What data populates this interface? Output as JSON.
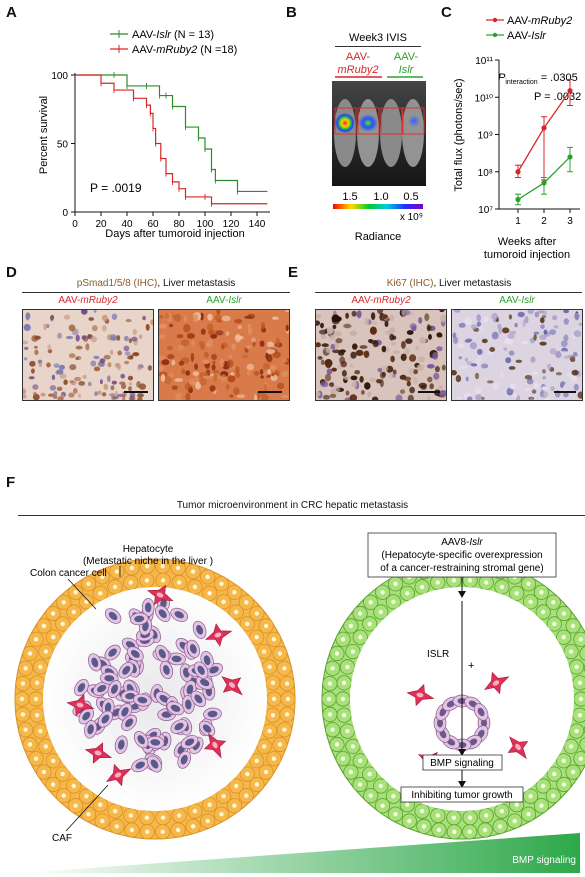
{
  "panels": {
    "A": "A",
    "B": "B",
    "C": "C",
    "D": "D",
    "E": "E",
    "F": "F"
  },
  "panelA": {
    "legend": [
      {
        "prefix": "AAV-",
        "gene": "Islr",
        "suffix": " (N = 13)",
        "color": "#2e8b2e"
      },
      {
        "prefix": "AAV-",
        "gene": "mRuby2",
        "suffix": " (N =18)",
        "color": "#d62728"
      }
    ],
    "p_text": "P = .0019",
    "ylabel": "Percent survival",
    "xlabel": "Days after tumoroid injection"
  },
  "panelB": {
    "title": "Week3 IVIS",
    "group1_line1": "AAV-",
    "group1_line2": "mRuby2",
    "group2_line1": "AAV-",
    "group2_line2": "Islr",
    "colorbar_ticks": [
      "1.5",
      "1.0",
      "0.5"
    ],
    "multiplier": "x 10⁹",
    "colorbar_label": "Radiance"
  },
  "panelC": {
    "legend": [
      {
        "prefix": "AAV-",
        "gene": "mRuby2",
        "color": "#d62728"
      },
      {
        "prefix": "AAV-",
        "gene": "Islr",
        "color": "#2ca02c"
      }
    ],
    "p_interaction_label": "P",
    "p_interaction_sub": "interaction",
    "p_interaction_value": " = .0305",
    "p2_text": "P = .0032",
    "ylabel": "Total flux (photons/sec)",
    "xlabel_line1": "Weeks after",
    "xlabel_line2": "tumoroid injection"
  },
  "panelD": {
    "title_marker": "pSmad1/5/8 (IHC)",
    "title_rest": ", Liver metastasis",
    "left_prefix": "AAV-",
    "left_gene": "mRuby2",
    "right_prefix": "AAV-",
    "right_gene": "Islr"
  },
  "panelE": {
    "title_marker": "Ki67 (IHC)",
    "title_rest": ", Liver metastasis",
    "left_prefix": "AAV-",
    "left_gene": "mRuby2",
    "right_prefix": "AAV-",
    "right_gene": "Islr"
  },
  "panelF": {
    "title": "Tumor microenvironment in CRC hepatic metastasis",
    "hepatocyte_line1": "Hepatocyte",
    "hepatocyte_line2": "(Metastatic niche in the liver )",
    "colon_cancer_cell": "Colon cancer cell",
    "caf": "CAF",
    "aav_line1_prefix": "AAV8-",
    "aav_line1_gene": "Islr",
    "aav_line2": "(Hepatocyte-specific overexpression",
    "aav_line3": "of a cancer-restraining stromal  gene)",
    "islr": "ISLR",
    "plus": "+",
    "bmp_box": "BMP signaling",
    "inhibit_box": "Inhibiting tumor growth",
    "gradient_label": "BMP signaling"
  },
  "chart_data": [
    {
      "type": "line",
      "panel": "A",
      "title": "",
      "xlabel": "Days after tumoroid injection",
      "ylabel": "Percent survival",
      "xlim": [
        0,
        150
      ],
      "ylim": [
        0,
        100
      ],
      "xticks": [
        0,
        20,
        40,
        60,
        80,
        100,
        120,
        140
      ],
      "yticks": [
        0,
        50,
        100
      ],
      "series": [
        {
          "name": "AAV-Islr (N = 13)",
          "color": "#2e8b2e",
          "x": [
            0,
            30,
            40,
            55,
            65,
            70,
            75,
            85,
            95,
            100,
            105,
            108,
            125,
            148
          ],
          "y": [
            100,
            100,
            92,
            92,
            85,
            85,
            77,
            62,
            54,
            46,
            31,
            23,
            15,
            15
          ]
        },
        {
          "name": "AAV-mRuby2 (N =18)",
          "color": "#d62728",
          "x": [
            0,
            20,
            30,
            45,
            55,
            58,
            60,
            62,
            66,
            70,
            75,
            80,
            85,
            100,
            105,
            148
          ],
          "y": [
            100,
            94,
            89,
            83,
            78,
            72,
            61,
            50,
            39,
            28,
            22,
            17,
            11,
            11,
            6,
            6
          ]
        }
      ]
    },
    {
      "type": "line",
      "panel": "C",
      "title": "",
      "xlabel": "Weeks after tumoroid injection",
      "ylabel": "Total flux (photons/sec)",
      "yscale": "log",
      "ylim": [
        10000000.0,
        100000000000.0
      ],
      "yticks": [
        "10⁷",
        "10⁸",
        "10⁹",
        "10¹⁰",
        "10¹¹"
      ],
      "xticks": [
        1,
        2,
        3
      ],
      "series": [
        {
          "name": "AAV-mRuby2",
          "color": "#d62728",
          "x": [
            1,
            2,
            3
          ],
          "y": [
            100000000.0,
            1500000000.0,
            15000000000.0
          ],
          "err_low": [
            70000000.0,
            60000000.0,
            6000000000.0
          ],
          "err_high": [
            150000000.0,
            3000000000.0,
            30000000000.0
          ]
        },
        {
          "name": "AAV-Islr",
          "color": "#2ca02c",
          "x": [
            1,
            2,
            3
          ],
          "y": [
            18000000.0,
            50000000.0,
            250000000.0
          ],
          "err_low": [
            13000000.0,
            25000000.0,
            100000000.0
          ],
          "err_high": [
            25000000.0,
            70000000.0,
            450000000.0
          ]
        }
      ]
    }
  ]
}
